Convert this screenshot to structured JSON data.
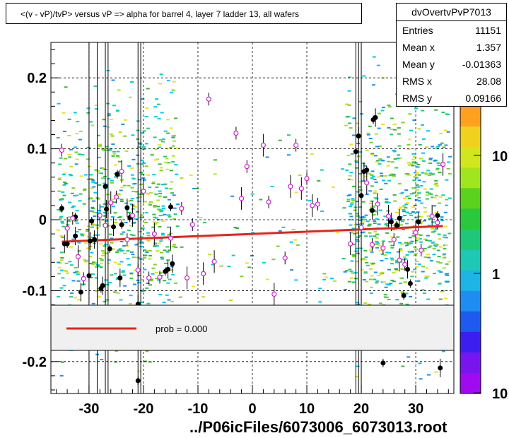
{
  "title": "<(v - vP)/tvP> versus   vP => alpha for barrel 4, layer 7 ladder 13, all wafers",
  "stats": {
    "name": "dvOvertvPvP7013",
    "rows": [
      {
        "key": "Entries",
        "value": "11151"
      },
      {
        "key": "Mean x",
        "value": "1.357"
      },
      {
        "key": "Mean y",
        "value": "-0.01363"
      },
      {
        "key": "RMS x",
        "value": "28.08"
      },
      {
        "key": "RMS y",
        "value": "0.09166"
      }
    ]
  },
  "legend": {
    "label": "prob = 0.000"
  },
  "x_axis_title": "../P06icFiles/6073006_6073013.root",
  "colorbar": {
    "tick_labels": [
      "10",
      "1",
      "10"
    ]
  },
  "colors": {
    "fit": "#e8231a",
    "markers": "#000000",
    "open_markers": "#d020d0"
  },
  "chart_data": {
    "type": "scatter",
    "title": "<(v - vP)/tvP> versus   vP => alpha for barrel 4, layer 7 ladder 13, all wafers",
    "xlabel": "../P06icFiles/6073006_6073013.root",
    "ylabel": "",
    "xlim": [
      -37,
      37
    ],
    "ylim": [
      -0.245,
      0.25
    ],
    "x_ticks": [
      -30,
      -20,
      -10,
      0,
      10,
      20,
      30
    ],
    "y_ticks": [
      -0.2,
      -0.1,
      0,
      0.1,
      0.2
    ],
    "x_tick_labels": [
      "-30",
      "-20",
      "-10",
      "0",
      "10",
      "20",
      "30"
    ],
    "y_tick_labels": [
      "-0.2",
      "-0.1",
      "0",
      "0.1",
      "0.2"
    ],
    "grid": true,
    "fit_line": {
      "x": [
        -35,
        35
      ],
      "y": [
        -0.031,
        -0.009
      ]
    },
    "series": [
      {
        "name": "profile",
        "marker": "filled",
        "points": [
          [
            -35,
            0.016
          ],
          [
            -34.5,
            -0.034
          ],
          [
            -34,
            -0.034
          ],
          [
            -32.5,
            -0.023
          ],
          [
            -32.5,
            0.004
          ],
          [
            -31.5,
            -0.102
          ],
          [
            -30,
            -0.079
          ],
          [
            -29.8,
            -0.03
          ],
          [
            -29.5,
            -0.002
          ],
          [
            -29,
            -0.028
          ],
          [
            -27.8,
            -0.097
          ],
          [
            -27.5,
            -0.093
          ],
          [
            -27,
            0.047
          ],
          [
            -26.8,
            0.015
          ],
          [
            -26.2,
            -0.041
          ],
          [
            -25.5,
            -0.01
          ],
          [
            -24.8,
            0.064
          ],
          [
            -24.3,
            -0.082
          ],
          [
            -24,
            -0.007
          ],
          [
            -23,
            0.017
          ],
          [
            -22.5,
            0.003
          ],
          [
            -21,
            -0.119
          ],
          [
            -16,
            -0.073
          ],
          [
            -15.5,
            -0.07
          ],
          [
            -15,
            0.018
          ],
          [
            -14.7,
            -0.062
          ],
          [
            19,
            0.096
          ],
          [
            19.5,
            0.118
          ],
          [
            20,
            0.034
          ],
          [
            20.5,
            0.068
          ],
          [
            21,
            0.07
          ],
          [
            22,
            0.013
          ],
          [
            22.2,
            0.141
          ],
          [
            22.6,
            0.144
          ],
          [
            24,
            -0.202
          ],
          [
            25.5,
            -0.003
          ],
          [
            26.5,
            -0.008
          ],
          [
            27,
            0.002
          ],
          [
            27.8,
            -0.107
          ],
          [
            28.5,
            -0.07
          ],
          [
            29,
            -0.09
          ],
          [
            30.5,
            -0.003
          ],
          [
            34,
            0.006
          ],
          [
            34.5,
            -0.209
          ],
          [
            -21,
            -0.227
          ]
        ]
      },
      {
        "name": "points",
        "marker": "open",
        "points": [
          [
            -35,
            0.098
          ],
          [
            -34,
            -0.012
          ],
          [
            -33,
            0.002
          ],
          [
            -32,
            -0.052
          ],
          [
            -31,
            -0.083
          ],
          [
            -28,
            0.006
          ],
          [
            -27,
            -0.008
          ],
          [
            -26,
            0.024
          ],
          [
            -25,
            0.032
          ],
          [
            -24,
            0.068
          ],
          [
            -23,
            -0.028
          ],
          [
            -22,
            0.006
          ],
          [
            -21,
            -0.071
          ],
          [
            -20,
            0.04
          ],
          [
            -19,
            -0.082
          ],
          [
            -18,
            -0.02
          ],
          [
            -17,
            -0.081
          ],
          [
            -15,
            -0.026
          ],
          [
            -13,
            0.016
          ],
          [
            -12,
            -0.082
          ],
          [
            -11,
            -0.007
          ],
          [
            -9,
            -0.076
          ],
          [
            -8,
            0.17
          ],
          [
            -7,
            -0.059
          ],
          [
            -3,
            0.122
          ],
          [
            -2,
            0.03
          ],
          [
            -1,
            0.075
          ],
          [
            2,
            0.105
          ],
          [
            3,
            0.025
          ],
          [
            4,
            -0.105
          ],
          [
            6,
            -0.054
          ],
          [
            7,
            0.047
          ],
          [
            8,
            0.105
          ],
          [
            9,
            0.044
          ],
          [
            10,
            0.058
          ],
          [
            11,
            0.02
          ],
          [
            12,
            0.022
          ],
          [
            18,
            -0.034
          ],
          [
            20,
            -0.011
          ],
          [
            21,
            0.052
          ],
          [
            22,
            -0.035
          ],
          [
            23,
            0.022
          ],
          [
            24,
            -0.04
          ],
          [
            25,
            0.005
          ],
          [
            26,
            -0.028
          ],
          [
            27,
            -0.057
          ],
          [
            28,
            -0.063
          ],
          [
            30,
            -0.018
          ],
          [
            31,
            -0.043
          ],
          [
            33,
            0.005
          ],
          [
            34,
            -0.004
          ],
          [
            35,
            0.078
          ]
        ]
      }
    ]
  }
}
